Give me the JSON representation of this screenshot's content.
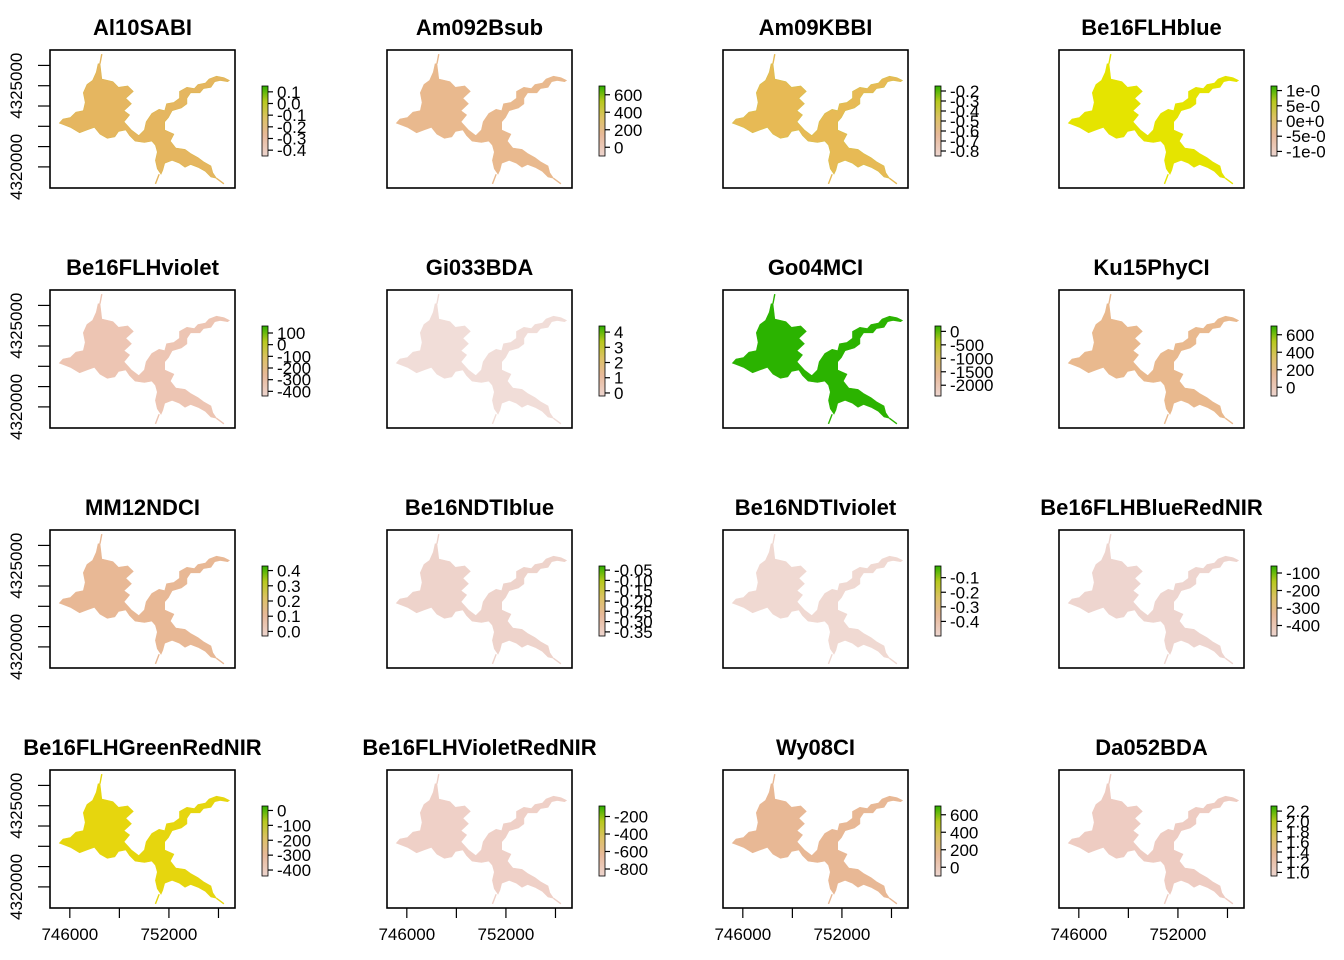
{
  "chart_data": {
    "type": "heatmap",
    "layout": {
      "rows": 4,
      "cols": 4
    },
    "x_axis": {
      "range": [
        744800,
        756000
      ],
      "ticks": [
        746000,
        752000
      ],
      "tick_labels": [
        "746000",
        "752000"
      ]
    },
    "y_axis": {
      "range": [
        4318700,
        4327200
      ],
      "ticks": [
        4320000,
        4325000
      ],
      "tick_labels": [
        "4320000",
        "4325000"
      ]
    },
    "colorbar_palette": [
      "#EDD5CF",
      "#E7B99A",
      "#DCC262",
      "#B7C91D",
      "#2DAE00"
    ],
    "panels": [
      {
        "title": "Al10SABI",
        "fill": "#E5B660",
        "fill_alt": "#DDB64F",
        "legend": {
          "ticks": [
            "0.1",
            "0.0",
            "-0.1",
            "-0.2",
            "-0.3",
            "-0.4"
          ],
          "values": [
            0.1,
            0.0,
            -0.1,
            -0.2,
            -0.3,
            -0.4
          ],
          "vmin": -0.45,
          "vmax": 0.15
        }
      },
      {
        "title": "Am092Bsub",
        "fill": "#E9B98E",
        "fill_alt": "#E9B98E",
        "legend": {
          "ticks": [
            "600",
            "400",
            "200",
            "0"
          ],
          "values": [
            600,
            400,
            200,
            0
          ],
          "vmin": -100,
          "vmax": 700
        }
      },
      {
        "title": "Am09KBBI",
        "fill": "#E7BA55",
        "fill_alt": "#D7C04C",
        "legend": {
          "ticks": [
            "-0.2",
            "-0.3",
            "-0.4",
            "-0.5",
            "-0.6",
            "-0.7",
            "-0.8"
          ],
          "values": [
            -0.2,
            -0.3,
            -0.4,
            -0.5,
            -0.6,
            -0.7,
            -0.8
          ],
          "vmin": -0.85,
          "vmax": -0.15
        }
      },
      {
        "title": "Be16FLHblue",
        "fill": "#E5E400",
        "fill_alt": "#E5E400",
        "legend": {
          "ticks": [
            "1e-0",
            "5e-0",
            "0e+0",
            "-5e-0",
            "-1e-0"
          ],
          "values": [
            1,
            0.5,
            0,
            -0.5,
            -1
          ],
          "vmin": -1.15,
          "vmax": 1.15
        }
      },
      {
        "title": "Be16FLHviolet",
        "fill": "#EDC5B3",
        "fill_alt": "#EDC5B3",
        "legend": {
          "ticks": [
            "100",
            "0",
            "-100",
            "-200",
            "-300",
            "-400"
          ],
          "values": [
            100,
            0,
            -100,
            -200,
            -300,
            -400
          ],
          "vmin": -440,
          "vmax": 160
        }
      },
      {
        "title": "Gi033BDA",
        "fill": "#F1DDD8",
        "fill_alt": "#F1DDD8",
        "legend": {
          "ticks": [
            "4",
            "3",
            "2",
            "1",
            "0"
          ],
          "values": [
            4,
            3,
            2,
            1,
            0
          ],
          "vmin": -0.2,
          "vmax": 4.4
        }
      },
      {
        "title": "Go04MCI",
        "fill": "#2BB300",
        "fill_alt": "#2BB300",
        "legend": {
          "ticks": [
            "0",
            "-500",
            "-1000",
            "-1500",
            "-2000"
          ],
          "values": [
            0,
            -500,
            -1000,
            -1500,
            -2000
          ],
          "vmin": -2400,
          "vmax": 200
        }
      },
      {
        "title": "Ku15PhyCI",
        "fill": "#E9B98E",
        "fill_alt": "#E9B98E",
        "legend": {
          "ticks": [
            "600",
            "400",
            "200",
            "0"
          ],
          "values": [
            600,
            400,
            200,
            0
          ],
          "vmin": -100,
          "vmax": 700
        }
      },
      {
        "title": "MM12NDCI",
        "fill": "#E8B895",
        "fill_alt": "#E8B895",
        "legend": {
          "ticks": [
            "0.4",
            "0.3",
            "0.2",
            "0.1",
            "0.0"
          ],
          "values": [
            0.4,
            0.3,
            0.2,
            0.1,
            0.0
          ],
          "vmin": -0.03,
          "vmax": 0.43
        }
      },
      {
        "title": "Be16NDTIblue",
        "fill": "#EED3CB",
        "fill_alt": "#EED3CB",
        "legend": {
          "ticks": [
            "-0.05",
            "-0.10",
            "-0.15",
            "-0.20",
            "-0.25",
            "-0.30",
            "-0.35"
          ],
          "values": [
            -0.05,
            -0.1,
            -0.15,
            -0.2,
            -0.25,
            -0.3,
            -0.35
          ],
          "vmin": -0.37,
          "vmax": -0.03
        }
      },
      {
        "title": "Be16NDTIviolet",
        "fill": "#F0D9D2",
        "fill_alt": "#F0D9D2",
        "legend": {
          "ticks": [
            "-0.1",
            "-0.2",
            "-0.3",
            "-0.4"
          ],
          "values": [
            -0.1,
            -0.2,
            -0.3,
            -0.4
          ],
          "vmin": -0.5,
          "vmax": -0.02
        }
      },
      {
        "title": "Be16FLHBlueRedNIR",
        "fill": "#EED5CF",
        "fill_alt": "#EED5CF",
        "legend": {
          "ticks": [
            "-100",
            "-200",
            "-300",
            "-400"
          ],
          "values": [
            -100,
            -200,
            -300,
            -400
          ],
          "vmin": -460,
          "vmax": -60
        }
      },
      {
        "title": "Be16FLHGreenRedNIR",
        "fill": "#E6D60E",
        "fill_alt": "#E6D60E",
        "legend": {
          "ticks": [
            "0",
            "-100",
            "-200",
            "-300",
            "-400"
          ],
          "values": [
            0,
            -100,
            -200,
            -300,
            -400
          ],
          "vmin": -440,
          "vmax": 30
        }
      },
      {
        "title": "Be16FLHVioletRedNIR",
        "fill": "#EFD0C7",
        "fill_alt": "#EFD0C7",
        "legend": {
          "ticks": [
            "-200",
            "-400",
            "-600",
            "-800"
          ],
          "values": [
            -200,
            -400,
            -600,
            -800
          ],
          "vmin": -880,
          "vmax": -80
        }
      },
      {
        "title": "Wy08CI",
        "fill": "#E8B895",
        "fill_alt": "#E8B895",
        "legend": {
          "ticks": [
            "600",
            "400",
            "200",
            "0"
          ],
          "values": [
            600,
            400,
            200,
            0
          ],
          "vmin": -100,
          "vmax": 700
        }
      },
      {
        "title": "Da052BDA",
        "fill": "#EECCC2",
        "fill_alt": "#EECCC2",
        "legend": {
          "ticks": [
            "2.2",
            "2.0",
            "1.8",
            "1.6",
            "1.4",
            "1.2",
            "1.0"
          ],
          "values": [
            2.2,
            2.0,
            1.8,
            1.6,
            1.4,
            1.2,
            1.0
          ],
          "vmin": 0.93,
          "vmax": 2.3
        }
      }
    ]
  }
}
